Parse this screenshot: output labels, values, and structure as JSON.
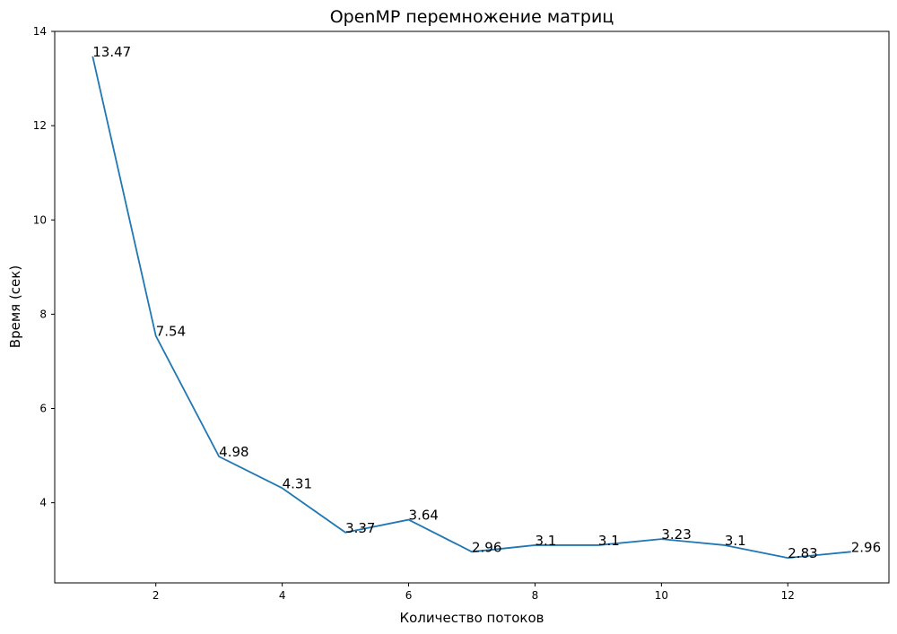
{
  "chart_data": {
    "type": "line",
    "title": "OpenMP перемножение матриц",
    "xlabel": "Количество потоков",
    "ylabel": "Время (сек)",
    "x": [
      1,
      2,
      3,
      4,
      5,
      6,
      7,
      8,
      9,
      10,
      11,
      12,
      13
    ],
    "series": [
      {
        "values": [
          13.47,
          7.54,
          4.98,
          4.31,
          3.37,
          3.64,
          2.96,
          3.1,
          3.1,
          3.23,
          3.1,
          2.83,
          2.96
        ],
        "labels": [
          "13.47",
          "7.54",
          "4.98",
          "4.31",
          "3.37",
          "3.64",
          "2.96",
          "3.1",
          "3.1",
          "3.23",
          "3.1",
          "2.83",
          "2.96"
        ],
        "color": "#1f77b4"
      }
    ],
    "xticks": [
      "2",
      "4",
      "6",
      "8",
      "10",
      "12"
    ],
    "xtick_values": [
      2,
      4,
      6,
      8,
      10,
      12
    ],
    "yticks": [
      "4",
      "6",
      "8",
      "10",
      "12",
      "14"
    ],
    "ytick_values": [
      4,
      6,
      8,
      10,
      12,
      14
    ],
    "xlim": [
      0.4,
      13.6
    ],
    "ylim": [
      2.3,
      14
    ],
    "grid": false,
    "legend": "none"
  }
}
